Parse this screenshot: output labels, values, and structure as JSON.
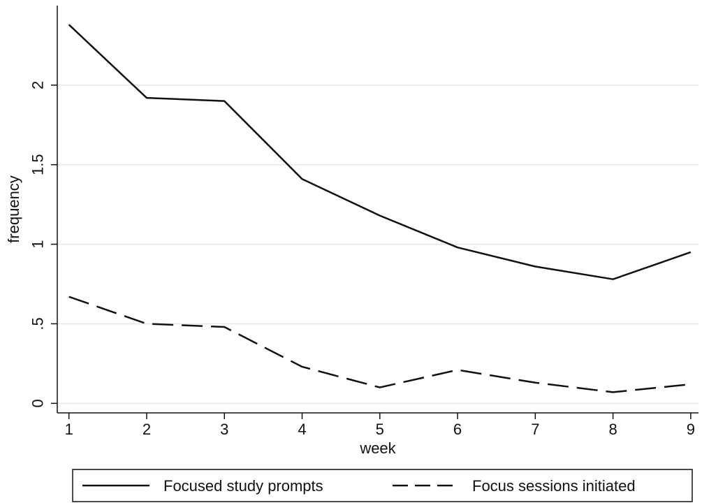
{
  "chart_data": {
    "type": "line",
    "title": "",
    "xlabel": "week",
    "ylabel": "frequency",
    "x": [
      1,
      2,
      3,
      4,
      5,
      6,
      7,
      8,
      9
    ],
    "xticks": [
      "1",
      "2",
      "3",
      "4",
      "5",
      "6",
      "7",
      "8",
      "9"
    ],
    "yticks": [
      {
        "value": 0,
        "label": "0"
      },
      {
        "value": 0.5,
        "label": ".5"
      },
      {
        "value": 1,
        "label": "1"
      },
      {
        "value": 1.5,
        "label": "1.5"
      },
      {
        "value": 2,
        "label": "2"
      }
    ],
    "xlim": [
      0.85,
      9.1
    ],
    "ylim": [
      -0.06,
      2.5
    ],
    "grid": true,
    "legend_position": "bottom",
    "series": [
      {
        "name": "Focused study prompts",
        "style": "solid",
        "color": "#111111",
        "values": [
          2.38,
          1.92,
          1.9,
          1.41,
          1.18,
          0.98,
          0.86,
          0.78,
          0.95
        ]
      },
      {
        "name": "Focus sessions initiated",
        "style": "dashed",
        "color": "#111111",
        "values": [
          0.67,
          0.5,
          0.48,
          0.23,
          0.1,
          0.21,
          0.13,
          0.07,
          0.12
        ]
      }
    ]
  }
}
